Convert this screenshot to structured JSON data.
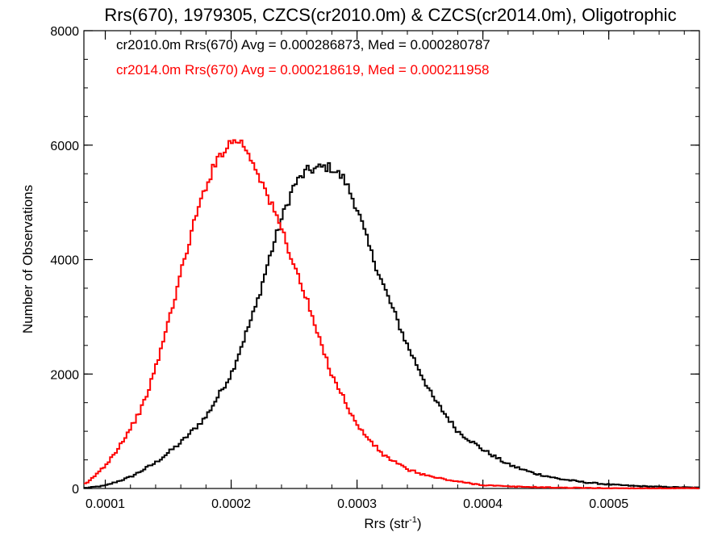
{
  "chart_data": {
    "type": "histogram",
    "title": "Rrs(670), 1979305, CZCS(cr2010.0m) & CZCS(cr2014.0m), Oligotrophic",
    "xlabel_main": "Rrs (str",
    "xlabel_sup": "-1",
    "xlabel_end": ")",
    "ylabel": "Number of Observations",
    "xlim": [
      8.3e-05,
      0.000572
    ],
    "ylim": [
      0,
      8000
    ],
    "x_ticks": [
      0.0001,
      0.0002,
      0.0003,
      0.0004,
      0.0005
    ],
    "x_tick_labels": [
      "0.0001",
      "0.0002",
      "0.0003",
      "0.0004",
      "0.0005"
    ],
    "y_ticks": [
      0,
      2000,
      4000,
      6000,
      8000
    ],
    "y_tick_labels": [
      "0",
      "2000",
      "4000",
      "6000",
      "8000"
    ],
    "x_minor_step": 2e-05,
    "y_minor_step": 500,
    "legend_placement": "top-left",
    "series": [
      {
        "name": "cr2010.0m Rrs(670) Avg = 0.000286873, Med = 0.000280787",
        "color": "#000000",
        "x": [
          8.5e-05,
          0.0001,
          0.00012,
          0.00014,
          0.00016,
          0.00018,
          0.0002,
          0.00022,
          0.00023,
          0.00024,
          0.00025,
          0.00026,
          0.00027,
          0.000275,
          0.00028,
          0.00029,
          0.0003,
          0.00031,
          0.00032,
          0.00034,
          0.00036,
          0.00038,
          0.0004,
          0.00042,
          0.00044,
          0.00046,
          0.00048,
          0.0005,
          0.00052,
          0.00054,
          0.00056,
          0.000572
        ],
        "y": [
          10,
          50,
          200,
          450,
          800,
          1250,
          2000,
          3200,
          4000,
          4700,
          5300,
          5550,
          5600,
          5620,
          5600,
          5400,
          4900,
          4200,
          3600,
          2500,
          1600,
          1000,
          680,
          420,
          270,
          170,
          110,
          70,
          45,
          30,
          20,
          15
        ]
      },
      {
        "name": "cr2014.0m Rrs(670) Avg = 0.000218619, Med = 0.000211958",
        "color": "#ff0000",
        "x": [
          8.5e-05,
          0.0001,
          0.00011,
          0.00012,
          0.00013,
          0.00014,
          0.00015,
          0.00016,
          0.00017,
          0.00018,
          0.00019,
          0.000195,
          0.0002,
          0.000205,
          0.00021,
          0.00022,
          0.00023,
          0.00024,
          0.00025,
          0.00026,
          0.00027,
          0.00028,
          0.00029,
          0.0003,
          0.00032,
          0.00034,
          0.00036,
          0.00038,
          0.0004,
          0.00042,
          0.00044,
          0.00046,
          0.00048,
          0.0005,
          0.000572
        ],
        "y": [
          80,
          400,
          700,
          1050,
          1450,
          2100,
          2900,
          3750,
          4600,
          5300,
          5800,
          5950,
          6050,
          6100,
          6000,
          5600,
          5050,
          4550,
          3900,
          3300,
          2600,
          2000,
          1550,
          1100,
          600,
          330,
          200,
          120,
          60,
          35,
          25,
          15,
          10,
          5,
          2
        ]
      }
    ]
  }
}
